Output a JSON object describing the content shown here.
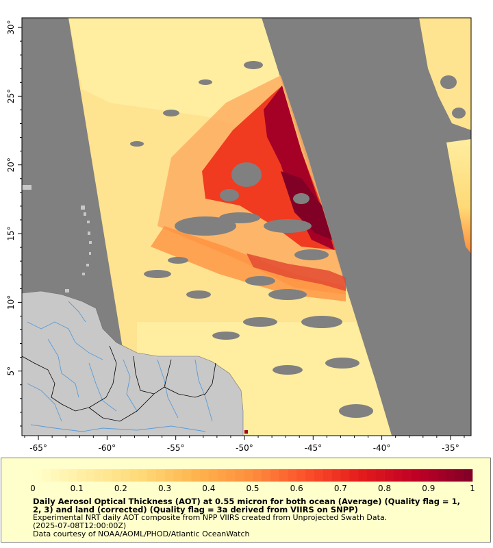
{
  "map": {
    "longitude_ticks": [
      "-65°",
      "-60°",
      "-55°",
      "-50°",
      "-45°",
      "-40°",
      "-35°"
    ],
    "latitude_ticks": [
      "5°",
      "10°",
      "15°",
      "20°",
      "25°",
      "30°"
    ],
    "lon_range": [
      -66.2,
      -33.5
    ],
    "lat_range": [
      0.3,
      30.7
    ],
    "colors": {
      "no_data": "#808080",
      "land": "#c8c8c8",
      "frame": "#000000",
      "rivers": "#5b9bd5",
      "borders": "#000000"
    }
  },
  "colorbar": {
    "tick_labels": [
      "0",
      "0.1",
      "0.2",
      "0.3",
      "0.4",
      "0.5",
      "0.6",
      "0.7",
      "0.8",
      "0.9",
      "1"
    ],
    "range": [
      0,
      1
    ],
    "colors": [
      "#ffffcc",
      "#ffeda0",
      "#fed976",
      "#feb24c",
      "#fd8d3c",
      "#fc4e2a",
      "#e31a1c",
      "#bd0026",
      "#800026"
    ]
  },
  "caption": {
    "title": "Daily Aerosol Optical Thickness (AOT) at 0.55 micron for both ocean (Average) (Quality flag = 1, 2, 3) and land (corrected) (Quality flag = 3a derived from VIIRS on SNPP)",
    "line1": "Experimental NRT daily AOT composite from NPP VIIRS created from Unprojected Swath Data.",
    "line2": "(2025-07-08T12:00:00Z)",
    "line3": "Data courtesy of NOAA/AOML/PHOD/Atlantic OceanWatch"
  }
}
